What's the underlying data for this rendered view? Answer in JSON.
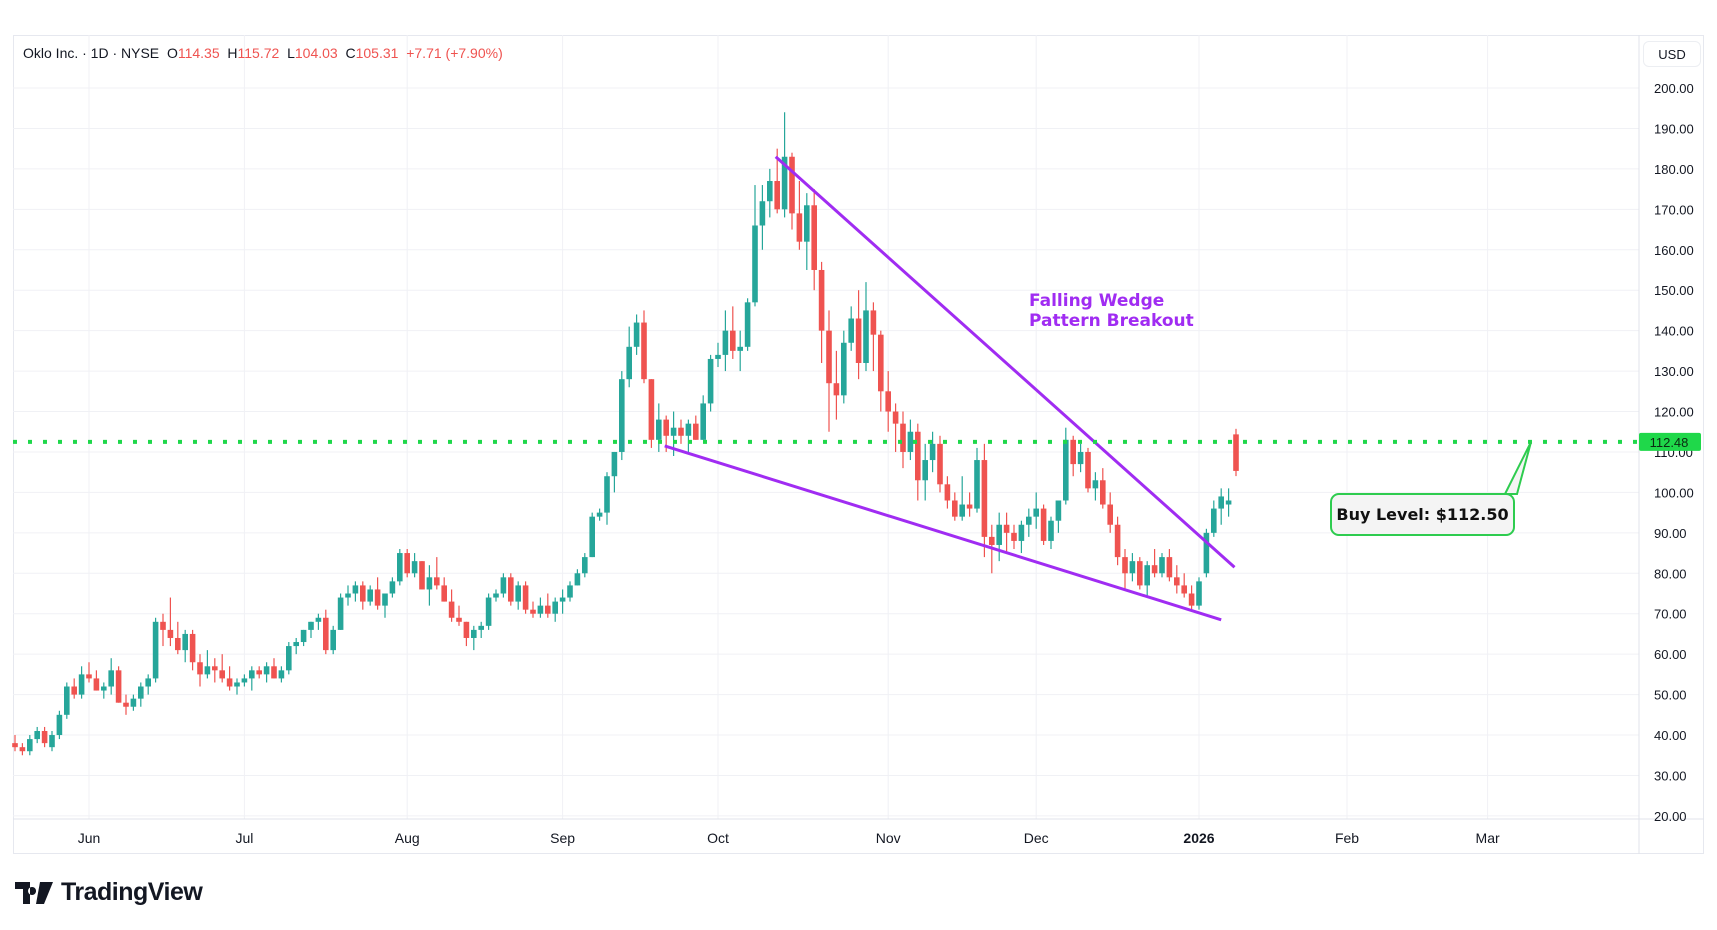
{
  "header": {
    "symbol": "Oklo Inc. · 1D · NYSE",
    "o_label": "O",
    "o": "114.35",
    "h_label": "H",
    "h": "115.72",
    "l_label": "L",
    "l": "104.03",
    "c_label": "C",
    "c": "105.31",
    "change": "+7.71 (+7.90%)"
  },
  "currency_button": "USD",
  "brand": "TradingView",
  "colors": {
    "up": "#26a69a",
    "down": "#ef5350",
    "buy_line": "#1fd84a",
    "wedge": "#a02cf2"
  },
  "chart_data": {
    "type": "candlestick",
    "title": "Oklo Inc. · 1D · NYSE",
    "ylim": [
      20,
      200
    ],
    "yticks": [
      "200.00",
      "190.00",
      "180.00",
      "170.00",
      "160.00",
      "150.00",
      "140.00",
      "130.00",
      "120.00",
      "110.00",
      "100.00",
      "90.00",
      "80.00",
      "70.00",
      "60.00",
      "50.00",
      "40.00",
      "30.00",
      "20.00"
    ],
    "ytick_values": [
      200,
      190,
      180,
      170,
      160,
      150,
      140,
      130,
      120,
      110,
      100,
      90,
      80,
      70,
      60,
      50,
      40,
      30,
      20
    ],
    "xticks": [
      {
        "label": "Jun",
        "index": 10,
        "bold": false
      },
      {
        "label": "Jul",
        "index": 31,
        "bold": false
      },
      {
        "label": "Aug",
        "index": 53,
        "bold": false
      },
      {
        "label": "Sep",
        "index": 74,
        "bold": false
      },
      {
        "label": "Oct",
        "index": 95,
        "bold": false
      },
      {
        "label": "Nov",
        "index": 118,
        "bold": false
      },
      {
        "label": "Dec",
        "index": 138,
        "bold": false
      },
      {
        "label": "2026",
        "index": 160,
        "bold": true
      },
      {
        "label": "Feb",
        "index": 180,
        "bold": false
      },
      {
        "label": "Mar",
        "index": 199,
        "bold": false
      }
    ],
    "ohlc": [
      [
        38,
        40,
        36,
        37
      ],
      [
        37,
        38,
        35,
        36
      ],
      [
        36,
        40,
        35,
        39
      ],
      [
        39,
        42,
        38,
        41
      ],
      [
        41,
        42,
        37,
        38
      ],
      [
        37,
        41,
        36,
        40
      ],
      [
        40,
        46,
        39,
        45
      ],
      [
        45,
        53,
        44,
        52
      ],
      [
        52,
        54,
        49,
        50
      ],
      [
        50,
        57,
        49,
        55
      ],
      [
        55,
        58,
        53,
        54
      ],
      [
        54,
        56,
        51,
        51
      ],
      [
        51,
        53,
        49,
        52
      ],
      [
        52,
        59,
        50,
        56
      ],
      [
        56,
        57,
        48,
        48
      ],
      [
        48,
        50,
        45,
        47
      ],
      [
        47,
        50,
        46,
        49
      ],
      [
        49,
        53,
        47,
        52
      ],
      [
        52,
        55,
        50,
        54
      ],
      [
        54,
        69,
        53,
        68
      ],
      [
        68,
        70,
        62,
        66
      ],
      [
        66,
        74,
        62,
        64
      ],
      [
        64,
        68,
        60,
        61
      ],
      [
        61,
        66,
        58,
        65
      ],
      [
        65,
        66,
        56,
        58
      ],
      [
        58,
        60,
        52,
        55
      ],
      [
        55,
        61,
        54,
        57
      ],
      [
        57,
        59,
        53,
        56
      ],
      [
        56,
        60,
        53,
        54
      ],
      [
        54,
        57,
        51,
        52
      ],
      [
        52,
        54,
        50,
        53
      ],
      [
        53,
        55,
        52,
        54
      ],
      [
        54,
        57,
        51,
        56
      ],
      [
        56,
        57,
        54,
        55
      ],
      [
        55,
        58,
        53,
        57
      ],
      [
        57,
        59,
        54,
        54
      ],
      [
        54,
        57,
        53,
        56
      ],
      [
        56,
        63,
        55,
        62
      ],
      [
        62,
        64,
        60,
        63
      ],
      [
        63,
        66,
        62,
        66
      ],
      [
        66,
        68,
        64,
        68
      ],
      [
        68,
        70,
        66,
        69
      ],
      [
        69,
        71,
        60,
        61
      ],
      [
        61,
        67,
        60,
        66
      ],
      [
        66,
        75,
        66,
        74
      ],
      [
        74,
        77,
        72,
        75
      ],
      [
        75,
        78,
        73,
        77
      ],
      [
        77,
        78,
        71,
        73
      ],
      [
        73,
        77,
        72,
        76
      ],
      [
        76,
        79,
        71,
        72
      ],
      [
        72,
        75,
        69,
        75
      ],
      [
        75,
        79,
        74,
        78
      ],
      [
        78,
        86,
        77,
        85
      ],
      [
        85,
        86,
        79,
        80
      ],
      [
        80,
        85,
        79,
        83
      ],
      [
        83,
        83,
        76,
        76
      ],
      [
        76,
        82,
        72,
        79
      ],
      [
        79,
        84,
        76,
        77
      ],
      [
        77,
        79,
        73,
        73
      ],
      [
        73,
        76,
        68,
        69
      ],
      [
        69,
        72,
        67,
        68
      ],
      [
        68,
        68,
        62,
        64
      ],
      [
        64,
        67,
        61,
        66
      ],
      [
        66,
        68,
        64,
        67
      ],
      [
        67,
        75,
        66,
        74
      ],
      [
        74,
        76,
        73,
        75
      ],
      [
        75,
        80,
        74,
        79
      ],
      [
        79,
        80,
        72,
        73
      ],
      [
        73,
        78,
        71,
        77
      ],
      [
        77,
        78,
        70,
        71
      ],
      [
        71,
        73,
        69,
        70
      ],
      [
        70,
        74,
        69,
        72
      ],
      [
        72,
        75,
        69,
        70
      ],
      [
        70,
        74,
        68,
        73
      ],
      [
        73,
        76,
        70,
        74
      ],
      [
        74,
        78,
        73,
        77
      ],
      [
        77,
        81,
        77,
        80
      ],
      [
        80,
        85,
        79,
        84
      ],
      [
        84,
        95,
        84,
        94
      ],
      [
        94,
        96,
        93,
        95
      ],
      [
        95,
        105,
        92,
        104
      ],
      [
        104,
        110,
        100,
        110
      ],
      [
        110,
        130,
        108,
        128
      ],
      [
        128,
        141,
        126,
        136
      ],
      [
        136,
        144,
        134,
        142
      ],
      [
        142,
        145,
        127,
        128
      ],
      [
        128,
        128,
        111,
        113
      ],
      [
        113,
        122,
        110,
        118
      ],
      [
        118,
        119,
        110,
        114
      ],
      [
        114,
        120,
        109,
        116
      ],
      [
        116,
        118,
        112,
        114
      ],
      [
        114,
        118,
        110,
        117
      ],
      [
        117,
        119,
        113,
        113
      ],
      [
        113,
        124,
        113,
        122
      ],
      [
        122,
        134,
        120,
        133
      ],
      [
        133,
        137,
        131,
        134
      ],
      [
        134,
        145,
        130,
        140
      ],
      [
        140,
        146,
        133,
        135
      ],
      [
        135,
        140,
        130,
        136
      ],
      [
        136,
        148,
        135,
        147
      ],
      [
        147,
        176,
        146,
        166
      ],
      [
        166,
        176,
        160,
        172
      ],
      [
        172,
        180,
        168,
        177
      ],
      [
        177,
        185,
        169,
        170
      ],
      [
        170,
        194,
        168,
        183
      ],
      [
        183,
        184,
        165,
        169
      ],
      [
        169,
        177,
        160,
        162
      ],
      [
        162,
        174,
        155,
        171
      ],
      [
        171,
        175,
        150,
        155
      ],
      [
        155,
        157,
        132,
        140
      ],
      [
        140,
        145,
        115,
        127
      ],
      [
        127,
        135,
        118,
        124
      ],
      [
        124,
        140,
        122,
        137
      ],
      [
        137,
        146,
        135,
        143
      ],
      [
        143,
        150,
        128,
        132
      ],
      [
        132,
        152,
        130,
        145
      ],
      [
        145,
        147,
        130,
        139
      ],
      [
        139,
        140,
        120,
        125
      ],
      [
        125,
        130,
        115,
        120
      ],
      [
        120,
        122,
        110,
        117
      ],
      [
        117,
        120,
        106,
        110
      ],
      [
        110,
        118,
        108,
        115
      ],
      [
        115,
        117,
        98,
        103
      ],
      [
        103,
        112,
        98,
        108
      ],
      [
        108,
        115,
        105,
        112
      ],
      [
        112,
        114,
        100,
        102
      ],
      [
        102,
        104,
        96,
        98
      ],
      [
        98,
        100,
        93,
        94
      ],
      [
        94,
        104,
        93,
        97
      ],
      [
        97,
        100,
        94,
        96
      ],
      [
        96,
        111,
        95,
        108
      ],
      [
        108,
        112,
        84,
        89
      ],
      [
        89,
        92,
        80,
        87
      ],
      [
        87,
        95,
        83,
        92
      ],
      [
        92,
        95,
        85,
        90
      ],
      [
        90,
        92,
        86,
        88
      ],
      [
        88,
        93,
        85,
        92
      ],
      [
        92,
        96,
        89,
        94
      ],
      [
        94,
        100,
        91,
        96
      ],
      [
        96,
        97,
        87,
        88
      ],
      [
        88,
        94,
        86,
        93
      ],
      [
        93,
        98,
        90,
        98
      ],
      [
        98,
        116,
        97,
        113
      ],
      [
        113,
        114,
        104,
        107
      ],
      [
        107,
        112,
        105,
        110
      ],
      [
        110,
        111,
        100,
        101
      ],
      [
        101,
        105,
        98,
        103
      ],
      [
        103,
        106,
        96,
        97
      ],
      [
        97,
        100,
        90,
        92
      ],
      [
        92,
        94,
        82,
        84
      ],
      [
        84,
        86,
        76,
        80
      ],
      [
        80,
        85,
        78,
        83
      ],
      [
        83,
        84,
        76,
        77
      ],
      [
        77,
        83,
        74,
        82
      ],
      [
        82,
        86,
        79,
        80
      ],
      [
        80,
        85,
        79,
        84
      ],
      [
        84,
        86,
        78,
        79
      ],
      [
        79,
        82,
        75,
        77
      ],
      [
        77,
        80,
        74,
        75
      ],
      [
        75,
        77,
        71,
        72
      ],
      [
        72,
        79,
        71,
        78
      ],
      [
        80,
        91,
        79,
        90
      ],
      [
        90,
        98,
        89,
        96
      ],
      [
        96,
        101,
        92,
        99
      ],
      [
        97,
        101,
        94,
        98
      ],
      [
        114.35,
        115.72,
        104.03,
        105.31
      ]
    ],
    "buy_level": {
      "value": 112.48,
      "price_label": "112.48",
      "callout": "Buy Level: $112.50"
    },
    "wedge": {
      "label_line1": "Falling Wedge",
      "label_line2": "Pattern Breakout",
      "upper": [
        [
          102.8,
          183
        ],
        [
          164.8,
          81.5
        ]
      ],
      "lower": [
        [
          87.8,
          111.5
        ],
        [
          163,
          68.5
        ]
      ]
    }
  }
}
